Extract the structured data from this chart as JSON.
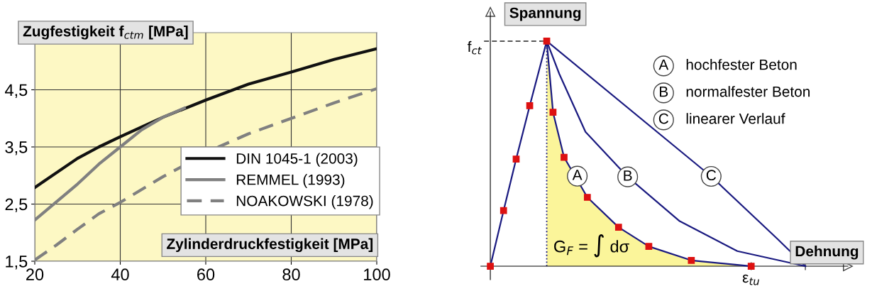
{
  "chart_data": [
    {
      "type": "line",
      "xlabel": "Zylinderdruckfestigkeit [MPa]",
      "ylabel": "Zugfestigkeit f$_{ctm}$ [MPa]",
      "xlim": [
        20,
        100
      ],
      "xticks": [
        20,
        40,
        60,
        80,
        100
      ],
      "ylim": [
        1.5,
        5.5
      ],
      "yticks": [
        {
          "value": 1.5,
          "label": "1,5"
        },
        {
          "value": 2.5,
          "label": "2,5"
        },
        {
          "value": 3.5,
          "label": "3,5"
        },
        {
          "value": 4.5,
          "label": "4,5"
        }
      ],
      "grid": true,
      "legend": "lower right",
      "series": [
        {
          "name": "DIN 1045-1 (2003)",
          "color": "#111111",
          "line_style": "solid",
          "x": [
            20,
            30,
            35,
            40,
            50,
            60,
            70,
            80,
            90,
            100
          ],
          "values": [
            2.79,
            3.3,
            3.5,
            3.68,
            4.02,
            4.32,
            4.6,
            4.81,
            5.03,
            5.22
          ]
        },
        {
          "name": "REMMEL (1993)",
          "color": "#808080",
          "line_style": "solid",
          "x": [
            20,
            30,
            35,
            40,
            45,
            50,
            55
          ],
          "values": [
            2.22,
            2.85,
            3.2,
            3.5,
            3.8,
            4.02,
            4.18
          ]
        },
        {
          "name": "NOAKOWSKI (1978)",
          "color": "#808080",
          "line_style": "dashed",
          "x": [
            20,
            25,
            30,
            35,
            40,
            50,
            63,
            70,
            80,
            90,
            100
          ],
          "values": [
            1.52,
            1.78,
            2.06,
            2.33,
            2.53,
            2.98,
            3.5,
            3.73,
            4.0,
            4.27,
            4.52
          ]
        }
      ]
    },
    {
      "type": "other",
      "xlabel": "Dehnung",
      "ylabel": "Spannung",
      "annotations": [
        "f$_{ct}$",
        "ε$_{tu}$",
        "G$_{F}$ = ∫ dσ",
        "A",
        "B",
        "C",
        "hochfester Beton",
        "normalfester Beton",
        "linearer Verlauf"
      ]
    }
  ]
}
